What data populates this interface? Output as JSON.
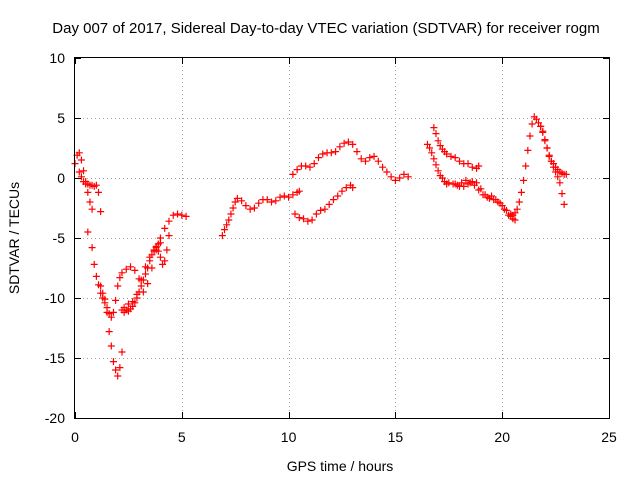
{
  "chart_data": {
    "type": "scatter",
    "title": "Day 007 of 2017, Sidereal Day-to-day VTEC variation (SDTVAR) for receiver rogm",
    "xlabel": "GPS time / hours",
    "ylabel": "SDTVAR / TECUs",
    "xlim": [
      0,
      25
    ],
    "ylim": [
      -20,
      10
    ],
    "xticks": [
      0,
      5,
      10,
      15,
      20,
      25
    ],
    "yticks": [
      -20,
      -15,
      -10,
      -5,
      0,
      5,
      10
    ],
    "xtick_labels": [
      "0",
      "5",
      "10",
      "15",
      "20",
      "25"
    ],
    "ytick_labels": [
      "-20",
      "-15",
      "-10",
      "-5",
      "0",
      "5",
      "10"
    ],
    "grid": true,
    "legend": "none",
    "marker": "plus",
    "color": "#ff0000",
    "series": [
      {
        "x": [
          0.0,
          0.1,
          0.2,
          0.3,
          0.4,
          0.5,
          0.6,
          0.7,
          0.8
        ],
        "y": [
          1.2,
          1.9,
          2.1,
          1.5,
          0.6,
          -0.3,
          -1.2,
          -2.0,
          -2.6
        ]
      },
      {
        "x": [
          0.2,
          0.3,
          0.4,
          0.5,
          0.6,
          0.7,
          0.8,
          0.9,
          1.0,
          1.1,
          1.2
        ],
        "y": [
          0.5,
          0.1,
          -0.3,
          -0.5,
          -0.5,
          -0.6,
          -0.6,
          -0.7,
          -0.6,
          -1.2,
          -2.8
        ]
      },
      {
        "x": [
          0.6,
          0.8,
          0.9,
          1.0,
          1.1,
          1.2,
          1.3,
          1.4,
          1.5,
          1.6,
          1.7,
          1.8,
          1.9,
          2.0,
          2.1,
          2.2
        ],
        "y": [
          -4.5,
          -5.8,
          -7.2,
          -8.2,
          -8.9,
          -9.6,
          -10.0,
          -10.4,
          -11.2,
          -12.8,
          -14.0,
          -15.3,
          -16.0,
          -16.5,
          -15.8,
          -14.5
        ]
      },
      {
        "x": [
          1.2,
          1.3,
          1.4,
          1.5,
          1.6,
          1.7,
          1.8,
          1.9,
          2.0,
          2.1,
          2.2,
          2.4,
          2.6,
          2.8,
          3.0
        ],
        "y": [
          -9.0,
          -9.6,
          -10.1,
          -10.8,
          -11.3,
          -11.6,
          -11.2,
          -10.2,
          -9.0,
          -8.3,
          -7.9,
          -7.6,
          -7.4,
          -7.7,
          -8.4
        ]
      },
      {
        "x": [
          2.2,
          2.3,
          2.4,
          2.5,
          2.6,
          2.7,
          2.8,
          2.9,
          3.0,
          3.1,
          3.2,
          3.3,
          3.4,
          3.5,
          3.6,
          3.7,
          3.8,
          3.9,
          4.0
        ],
        "y": [
          -11.0,
          -11.2,
          -11.0,
          -11.1,
          -10.9,
          -10.7,
          -10.4,
          -10.0,
          -9.5,
          -9.0,
          -8.5,
          -8.0,
          -7.5,
          -6.9,
          -6.4,
          -6.0,
          -5.7,
          -5.5,
          -5.4
        ]
      },
      {
        "x": [
          2.3,
          2.5,
          2.7,
          2.9,
          3.1,
          3.3,
          3.5,
          3.7,
          3.8,
          3.9,
          4.0,
          4.1,
          4.2,
          4.3,
          4.4
        ],
        "y": [
          -10.8,
          -10.5,
          -10.3,
          -9.7,
          -8.5,
          -7.4,
          -6.6,
          -6.1,
          -5.8,
          -6.1,
          -6.6,
          -7.2,
          -6.9,
          -6.0,
          -4.8
        ]
      },
      {
        "x": [
          3.2,
          3.4,
          3.6,
          3.8,
          4.0,
          4.2,
          4.4,
          4.6,
          4.8,
          5.0,
          5.2
        ],
        "y": [
          -9.5,
          -8.8,
          -7.5,
          -6.0,
          -5.0,
          -4.2,
          -3.6,
          -3.1,
          -3.0,
          -3.1,
          -3.2
        ]
      },
      {
        "x": [
          6.9,
          7.0,
          7.1,
          7.2,
          7.3,
          7.4,
          7.5,
          7.6,
          7.8,
          8.0,
          8.2,
          8.4,
          8.6,
          8.8,
          9.0,
          9.2,
          9.4,
          9.6,
          9.8,
          10.0,
          10.2,
          10.4,
          10.5
        ],
        "y": [
          -4.8,
          -4.3,
          -3.9,
          -3.5,
          -3.0,
          -2.5,
          -2.0,
          -1.7,
          -1.9,
          -2.3,
          -2.6,
          -2.5,
          -2.1,
          -1.8,
          -1.8,
          -2.0,
          -1.9,
          -1.6,
          -1.5,
          -1.6,
          -1.4,
          -1.2,
          -1.1
        ]
      },
      {
        "x": [
          10.2,
          10.4,
          10.6,
          10.8,
          11.0,
          11.2,
          11.4,
          11.6,
          11.8,
          12.0,
          12.2,
          12.4,
          12.6,
          12.8,
          13.0,
          13.2,
          13.4,
          13.6,
          13.8,
          14.0,
          14.2,
          14.4,
          14.6,
          14.8,
          15.0,
          15.2,
          15.4,
          15.6
        ],
        "y": [
          0.3,
          0.7,
          1.0,
          1.0,
          0.9,
          1.2,
          1.7,
          2.0,
          2.1,
          2.1,
          2.2,
          2.6,
          2.9,
          3.0,
          2.8,
          2.2,
          1.6,
          1.4,
          1.7,
          1.8,
          1.4,
          0.9,
          0.5,
          0.1,
          -0.2,
          0.0,
          0.3,
          0.1
        ]
      },
      {
        "x": [
          10.3,
          10.5,
          10.7,
          10.9,
          11.1,
          11.3,
          11.5,
          11.7,
          11.9,
          12.1,
          12.3,
          12.5,
          12.7,
          12.9,
          13.0
        ],
        "y": [
          -3.0,
          -3.3,
          -3.4,
          -3.6,
          -3.5,
          -3.0,
          -2.7,
          -2.6,
          -2.2,
          -1.8,
          -1.5,
          -1.1,
          -0.8,
          -0.6,
          -0.8
        ]
      },
      {
        "x": [
          16.5,
          16.6,
          16.7,
          16.8,
          16.9,
          17.0,
          17.1,
          17.2,
          17.3,
          17.4,
          17.5,
          17.7,
          17.9,
          18.1,
          18.3,
          18.5,
          18.7,
          18.9,
          19.1,
          19.3,
          19.5,
          19.7,
          19.9,
          20.1,
          20.3,
          20.5,
          20.6
        ],
        "y": [
          2.8,
          2.5,
          2.1,
          1.6,
          1.1,
          0.6,
          0.2,
          0.0,
          -0.3,
          -0.5,
          -0.4,
          -0.5,
          -0.6,
          -0.4,
          -0.2,
          -0.4,
          -0.6,
          -1.0,
          -1.4,
          -1.6,
          -1.5,
          -1.8,
          -2.1,
          -2.6,
          -3.1,
          -3.4,
          -3.5
        ]
      },
      {
        "x": [
          16.8,
          16.9,
          17.0,
          17.1,
          17.2,
          17.3,
          17.4,
          17.6,
          17.8,
          18.0,
          18.2,
          18.4,
          18.6,
          18.8,
          18.9
        ],
        "y": [
          4.2,
          3.7,
          3.1,
          2.7,
          2.4,
          2.2,
          2.0,
          1.8,
          1.7,
          1.4,
          1.2,
          1.2,
          0.9,
          0.8,
          1.0
        ]
      },
      {
        "x": [
          17.8,
          18.0,
          18.2,
          18.4,
          18.6,
          18.8,
          19.0,
          19.2,
          19.4,
          19.6,
          19.8,
          20.0,
          20.2,
          20.4
        ],
        "y": [
          -0.5,
          -0.7,
          -0.7,
          -0.5,
          -0.3,
          -0.4,
          -0.9,
          -1.4,
          -1.7,
          -1.8,
          -2.0,
          -2.3,
          -2.7,
          -3.0
        ]
      },
      {
        "x": [
          20.4,
          20.5,
          20.6,
          20.7,
          20.8,
          20.9,
          21.0,
          21.1,
          21.2,
          21.3,
          21.4,
          21.5,
          21.6,
          21.7,
          21.8,
          21.9,
          22.0,
          22.1,
          22.2,
          22.3,
          22.4,
          22.5,
          22.6,
          22.7,
          22.8,
          22.9
        ],
        "y": [
          -3.2,
          -3.1,
          -2.9,
          -2.6,
          -2.0,
          -1.2,
          -0.2,
          1.0,
          2.3,
          3.5,
          4.5,
          5.1,
          4.9,
          4.6,
          4.3,
          3.8,
          3.1,
          2.5,
          1.9,
          1.4,
          0.9,
          0.5,
          0.1,
          -0.4,
          -1.3,
          -2.2
        ]
      },
      {
        "x": [
          21.8,
          21.9,
          22.0,
          22.1,
          22.2,
          22.3,
          22.4,
          22.5,
          22.6,
          22.7,
          22.8,
          22.9,
          23.0
        ],
        "y": [
          4.3,
          3.9,
          3.2,
          2.5,
          1.8,
          1.4,
          1.2,
          0.9,
          0.7,
          0.5,
          0.4,
          0.3,
          0.3
        ]
      }
    ]
  }
}
